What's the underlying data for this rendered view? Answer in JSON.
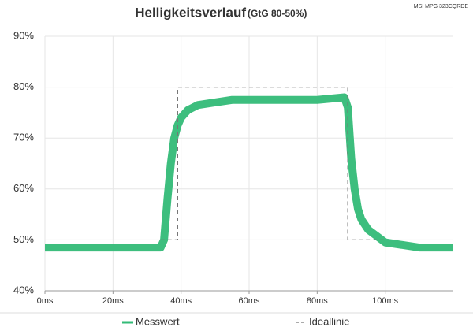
{
  "chart_data": {
    "type": "line",
    "title": "Helligkeitsverlauf",
    "subtitle": "(GtG 80-50%)",
    "annotation": "MSI MPG 323CQRDE",
    "xlim": [
      0,
      120
    ],
    "ylim": [
      40,
      90
    ],
    "xticks": [
      {
        "value": 0,
        "label": "0ms"
      },
      {
        "value": 20,
        "label": "20ms"
      },
      {
        "value": 40,
        "label": "40ms"
      },
      {
        "value": 60,
        "label": "60ms"
      },
      {
        "value": 80,
        "label": "80ms"
      },
      {
        "value": 100,
        "label": "100ms"
      }
    ],
    "yticks": [
      {
        "value": 40,
        "label": "40%"
      },
      {
        "value": 50,
        "label": "50%"
      },
      {
        "value": 60,
        "label": "60%"
      },
      {
        "value": 70,
        "label": "70%"
      },
      {
        "value": 80,
        "label": "80%"
      },
      {
        "value": 90,
        "label": "90%"
      }
    ],
    "grid": true,
    "legend": "bottom",
    "series": [
      {
        "name": "Messwert",
        "color": "#33bb77",
        "x": [
          0,
          5,
          10,
          15,
          20,
          25,
          30,
          34,
          35,
          36,
          37,
          38,
          39,
          40,
          42,
          45,
          50,
          55,
          60,
          70,
          80,
          88,
          89,
          90,
          91,
          92,
          93,
          95,
          98,
          100,
          105,
          110,
          120
        ],
        "values": [
          48.5,
          48.5,
          48.5,
          48.5,
          48.5,
          48.5,
          48.5,
          48.5,
          50,
          58,
          65,
          70,
          72.5,
          74,
          75.5,
          76.5,
          77,
          77.5,
          77.5,
          77.5,
          77.5,
          78,
          76,
          66,
          60,
          56,
          54,
          52,
          50.5,
          49.5,
          49,
          48.5,
          48.5
        ]
      },
      {
        "name": "Ideallinie",
        "color": "#777777",
        "dashed": true,
        "x": [
          34,
          39,
          39,
          89,
          89,
          100
        ],
        "values": [
          50,
          50,
          80,
          80,
          50,
          50
        ]
      }
    ]
  }
}
